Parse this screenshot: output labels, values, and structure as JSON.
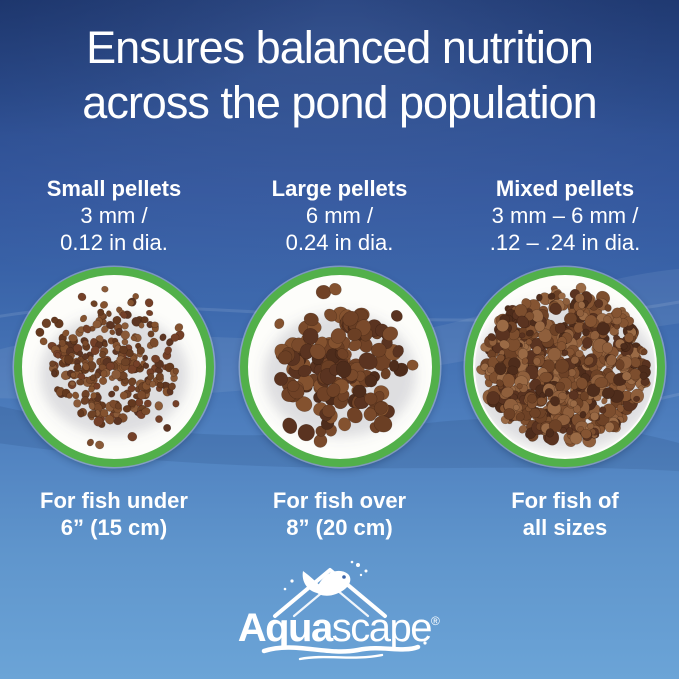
{
  "title": {
    "line1": "Ensures balanced nutrition",
    "line2": "across the pond population"
  },
  "columns": [
    {
      "heading": "Small pellets",
      "size_line": "3 mm /",
      "diameter_line": "0.12 in dia.",
      "caption_line1": "For fish under",
      "caption_line2": "6” (15 cm)"
    },
    {
      "heading": "Large pellets",
      "size_line": "6 mm /",
      "diameter_line": "0.24 in dia.",
      "caption_line1": "For fish over",
      "caption_line2": "8” (20 cm)"
    },
    {
      "heading": "Mixed pellets",
      "size_line": "3 mm – 6 mm /",
      "diameter_line": ".12 – .24 in dia.",
      "caption_line1": "For fish of",
      "caption_line2": "all sizes"
    }
  ],
  "logo": {
    "brand_bold": "Aqua",
    "brand_rest": "scape",
    "registered": "®"
  },
  "colors": {
    "background_top": "#1c3a7a",
    "background_middle": "#3e6aae",
    "background_bottom": "#6ba4d7",
    "ring_green": "#52b04a",
    "text": "#ffffff"
  },
  "pellets": {
    "small": {
      "seed": 7,
      "pile_count": 260,
      "scatter_count": 48,
      "r_min": 2.8,
      "r_max": 4.6,
      "pile_radius": 60,
      "scatter_radius": 83,
      "exp": 0.58,
      "palette": [
        "#6e4226",
        "#7a4a2b",
        "#5d3522",
        "#84522f",
        "#64391f",
        "#8a5a38",
        "#744028"
      ]
    },
    "large": {
      "seed": 13,
      "pile_count": 130,
      "scatter_count": 30,
      "r_min": 5.2,
      "r_max": 8.4,
      "pile_radius": 62,
      "scatter_radius": 83,
      "exp": 0.58,
      "palette": [
        "#5a3320",
        "#6b3f24",
        "#7a4a2b",
        "#4e2c1b",
        "#84522f",
        "#704226"
      ]
    },
    "mixed": {
      "seed": 29,
      "pile_count": 580,
      "scatter_count": 160,
      "r_min": 2.6,
      "r_max": 7.2,
      "pile_radius": 79,
      "scatter_radius": 84,
      "exp": 0.5,
      "palette": [
        "#6e4226",
        "#7d4e2e",
        "#8f5f3c",
        "#5a3320",
        "#9a6a45",
        "#4e2c1b",
        "#855432"
      ]
    }
  }
}
